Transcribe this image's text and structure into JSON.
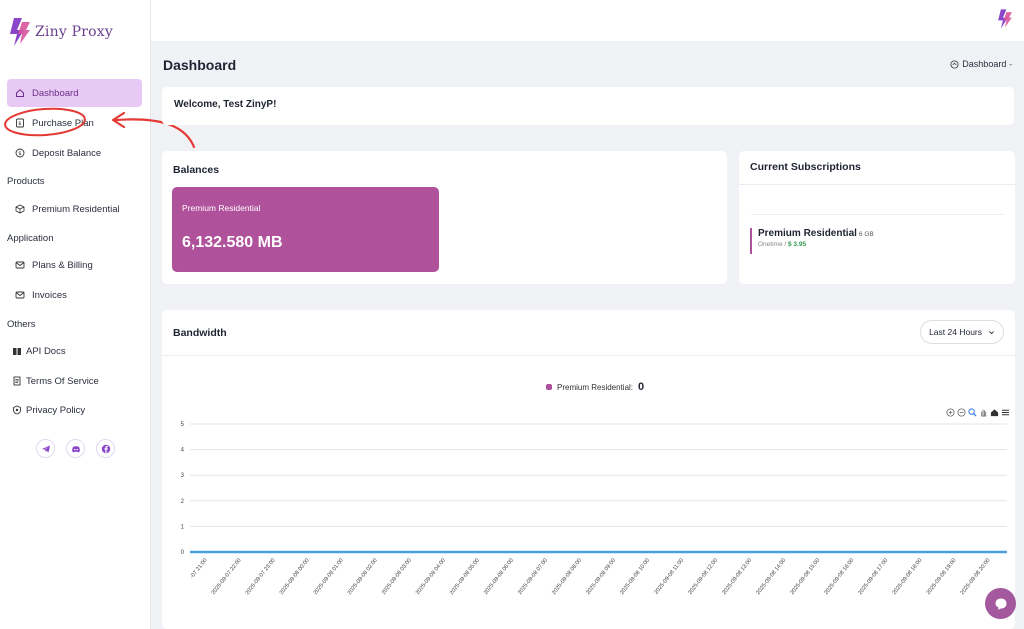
{
  "brand": {
    "name": "Ziny Proxy",
    "accent": "#b0519c",
    "accent_light": "#e8c8f4"
  },
  "sidebar": {
    "items": [
      {
        "label": "Dashboard",
        "icon": "home-icon",
        "active": true
      },
      {
        "label": "Purchase Plan",
        "icon": "receipt-icon"
      },
      {
        "label": "Deposit Balance",
        "icon": "dollar-icon"
      }
    ],
    "sections": [
      {
        "label": "Products",
        "items": [
          {
            "label": "Premium Residential",
            "icon": "box-icon"
          }
        ]
      },
      {
        "label": "Application",
        "items": [
          {
            "label": "Plans & Billing",
            "icon": "envelope-icon"
          },
          {
            "label": "Invoices",
            "icon": "envelope-icon"
          }
        ]
      },
      {
        "label": "Others",
        "items": [
          {
            "label": "API Docs",
            "icon": "book-icon"
          },
          {
            "label": "Terms Of Service",
            "icon": "document-icon"
          },
          {
            "label": "Privacy Policy",
            "icon": "shield-icon"
          }
        ]
      }
    ],
    "socials": [
      "telegram-icon",
      "discord-icon",
      "facebook-icon"
    ]
  },
  "header": {
    "title": "Dashboard",
    "breadcrumb": "Dashboard"
  },
  "welcome": {
    "text": "Welcome, Test ZinyP!"
  },
  "balances": {
    "title": "Balances",
    "tile_label": "Premium Residential",
    "tile_value": "6,132.580 MB"
  },
  "subscriptions": {
    "title": "Current Subscriptions",
    "item_name": "Premium Residential",
    "item_size": "6 GB",
    "item_type": "Onetime /",
    "item_price": "$ 3.95"
  },
  "bandwidth": {
    "title": "Bandwidth",
    "range": "Last 24 Hours",
    "legend_label": "Premium Residential:",
    "legend_value": "0"
  },
  "chart_data": {
    "type": "line",
    "title": "",
    "xlabel": "",
    "ylabel": "",
    "ylim": [
      0,
      5
    ],
    "yticks": [
      "0",
      "1",
      "2",
      "3",
      "4",
      "5"
    ],
    "x": [
      "-07 21:00",
      "2025-09-07 22:00",
      "2025-09-07 23:00",
      "2025-09-08 00:00",
      "2025-09-08 01:00",
      "2025-09-08 02:00",
      "2025-09-08 03:00",
      "2025-09-08 04:00",
      "2025-09-08 05:00",
      "2025-09-08 06:00",
      "2025-09-08 07:00",
      "2025-09-08 08:00",
      "2025-09-08 09:00",
      "2025-09-08 10:00",
      "2025-09-08 11:00",
      "2025-09-08 12:00",
      "2025-09-08 13:00",
      "2025-09-08 14:00",
      "2025-09-08 15:00",
      "2025-09-08 16:00",
      "2025-09-08 17:00",
      "2025-09-08 18:00",
      "2025-09-08 19:00",
      "2025-09-08 20:00"
    ],
    "series": [
      {
        "name": "Premium Residential",
        "values": [
          0,
          0,
          0,
          0,
          0,
          0,
          0,
          0,
          0,
          0,
          0,
          0,
          0,
          0,
          0,
          0,
          0,
          0,
          0,
          0,
          0,
          0,
          0,
          0
        ],
        "color": "#4a9fe0"
      }
    ],
    "grid": true,
    "legend": "top-center"
  }
}
